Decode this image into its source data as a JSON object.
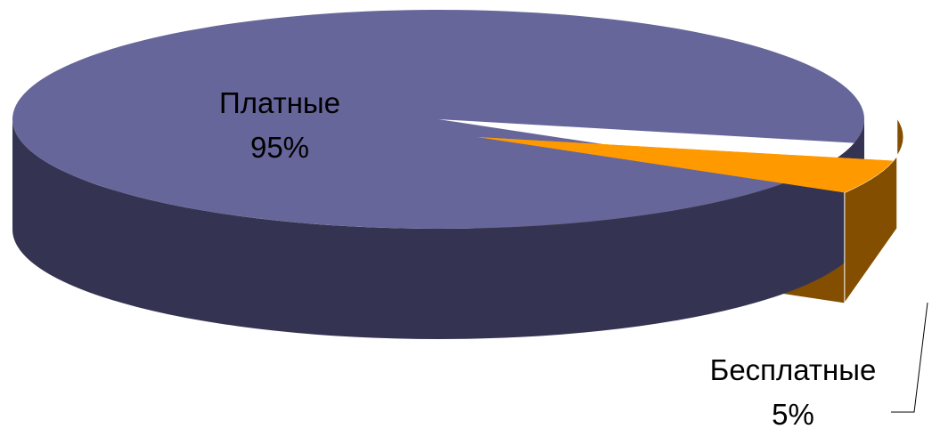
{
  "chart_data": {
    "type": "pie",
    "style": "3d",
    "title": "",
    "slices": [
      {
        "label": "Платные",
        "value": 95,
        "percent_label": "95%",
        "color": "#66669A",
        "side_color": "#343452"
      },
      {
        "label": "Бесплатные",
        "value": 5,
        "percent_label": "5%",
        "color": "#FF9900",
        "side_color": "#844E00",
        "exploded": true
      }
    ],
    "legend": "none"
  }
}
